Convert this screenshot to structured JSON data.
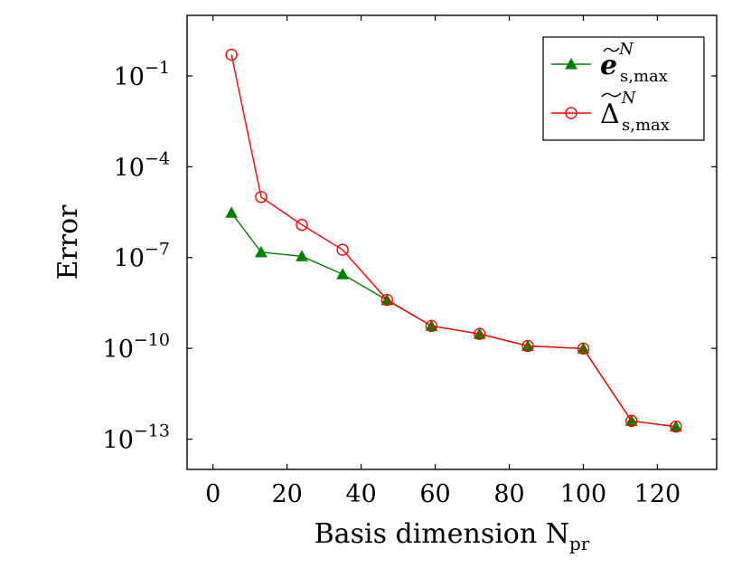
{
  "chart_data": {
    "type": "line",
    "xlabel": "Basis dimension N",
    "xlabel_subscript": "pr",
    "ylabel": "Error",
    "xlim": [
      -7,
      136
    ],
    "ylim": [
      1e-14,
      10.0
    ],
    "yscale": "log",
    "x_ticks": [
      "0",
      "20",
      "40",
      "60",
      "80",
      "100",
      "120"
    ],
    "x_tick_values": [
      0,
      20,
      40,
      60,
      80,
      100,
      120
    ],
    "y_tick_values": [
      1e-13,
      1e-10,
      1e-07,
      0.0001,
      0.1
    ],
    "y_tick_base": "10",
    "y_tick_exponents": [
      "−13",
      "−10",
      "−7",
      "−4",
      "−1"
    ],
    "grid": false,
    "legend_position": "top-right",
    "series": [
      {
        "name": "e",
        "name_superscript": "N",
        "name_subscript": "s,max",
        "color": "#008000",
        "marker": "filled-triangle",
        "x": [
          5,
          13,
          24,
          35,
          47,
          59,
          72,
          85,
          100,
          113,
          125
        ],
        "y": [
          3e-06,
          1.5e-07,
          1.1e-07,
          2.8e-08,
          3.9e-09,
          5.5e-10,
          3e-10,
          1.2e-10,
          9.8e-11,
          4e-13,
          2.6e-13
        ]
      },
      {
        "name": "Δ",
        "name_superscript": "N",
        "name_subscript": "s,max",
        "color": "#ff0000",
        "marker": "open-circle",
        "x": [
          5,
          13,
          24,
          35,
          47,
          59,
          72,
          85,
          100,
          113,
          125
        ],
        "y": [
          0.5,
          1e-05,
          1.2e-06,
          1.8e-07,
          4e-09,
          5.5e-10,
          3e-10,
          1.2e-10,
          9.8e-11,
          4e-13,
          2.6e-13
        ]
      }
    ]
  }
}
